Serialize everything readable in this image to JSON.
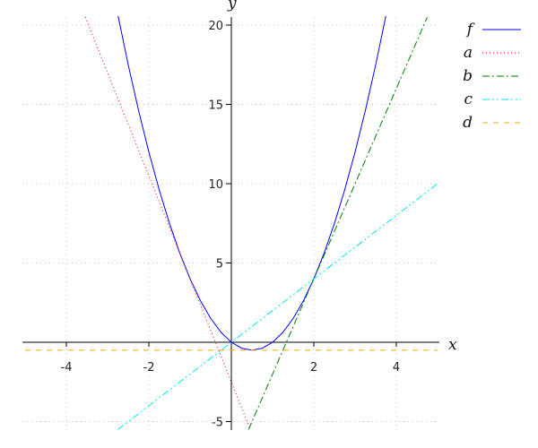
{
  "chart_data": {
    "type": "line",
    "xlabel": "x",
    "ylabel": "y",
    "xlim": [
      -5,
      5
    ],
    "ylim": [
      -5.5,
      20.5
    ],
    "grid": true,
    "legend_position": "top-right",
    "x_ticks": [
      "-4",
      "-2",
      "2",
      "4"
    ],
    "y_ticks": [
      "-5",
      "5",
      "10",
      "15",
      "20"
    ],
    "series": [
      {
        "name": "f",
        "color": "#0000ff",
        "style": "solid",
        "x": [
          -2.75,
          -2.5,
          -2.25,
          -2,
          -1.75,
          -1.5,
          -1.25,
          -1,
          -0.75,
          -0.5,
          -0.25,
          0,
          0.25,
          0.5,
          0.75,
          1,
          1.25,
          1.5,
          1.75,
          2,
          2.25,
          2.5,
          2.75,
          3,
          3.25,
          3.5,
          3.75
        ],
        "y": [
          20.625,
          17.5,
          14.625,
          12,
          9.625,
          7.5,
          5.625,
          4,
          2.625,
          1.5,
          0.625,
          0,
          -0.375,
          -0.5,
          -0.375,
          0,
          0.625,
          1.5,
          2.625,
          4,
          5.625,
          7.5,
          9.625,
          12,
          14.625,
          17.5,
          20.625
        ]
      },
      {
        "name": "a",
        "color": "#ff0000",
        "style": "dotted",
        "x": [
          -3.54,
          0.46
        ],
        "y": [
          20.5,
          -5.5
        ]
      },
      {
        "name": "b",
        "color": "#008000",
        "style": "dashdot",
        "x": [
          0.417,
          4.75
        ],
        "y": [
          -5.5,
          20.5
        ]
      },
      {
        "name": "c",
        "color": "#00e5ee",
        "style": "dashdotdot",
        "x": [
          -2.75,
          5
        ],
        "y": [
          -5.5,
          10
        ]
      },
      {
        "name": "d",
        "color": "#ffa500",
        "style": "dashed",
        "x": [
          -5,
          5
        ],
        "y": [
          -0.5,
          -0.5
        ]
      }
    ]
  }
}
